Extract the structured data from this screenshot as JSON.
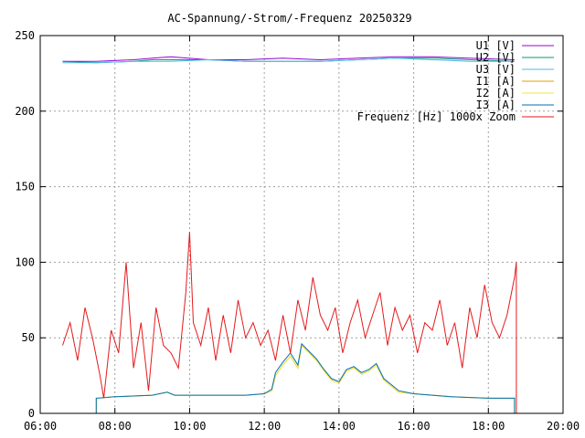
{
  "chart_data": {
    "type": "line",
    "title": "AC-Spannung/-Strom/-Frequenz 20250329",
    "xlabel": "",
    "ylabel": "",
    "x_ticks": [
      "06:00",
      "08:00",
      "10:00",
      "12:00",
      "14:00",
      "16:00",
      "18:00",
      "20:00"
    ],
    "xlim_hours": [
      6,
      20
    ],
    "ylim": [
      0,
      250
    ],
    "y_ticks": [
      "0",
      "50",
      "100",
      "150",
      "200",
      "250"
    ],
    "grid": true,
    "legend_position": "top-right",
    "series": [
      {
        "name": "U1 [V]",
        "color": "#9400d3",
        "x": [
          6.6,
          7.5,
          8.5,
          9.0,
          9.5,
          10.5,
          11.5,
          12.5,
          13.5,
          14.5,
          15.5,
          16.5,
          17.5,
          18.7
        ],
        "values": [
          233,
          233,
          234,
          235,
          236,
          234,
          234,
          235,
          234,
          235,
          236,
          236,
          235,
          234
        ]
      },
      {
        "name": "U2 [V]",
        "color": "#009e73",
        "x": [
          6.6,
          7.5,
          8.5,
          9.0,
          9.5,
          10.5,
          11.5,
          12.5,
          13.5,
          14.5,
          15.5,
          16.5,
          17.5,
          18.7
        ],
        "values": [
          233,
          232,
          233,
          234,
          234,
          234,
          233,
          233,
          233,
          234,
          235,
          235,
          234,
          233
        ]
      },
      {
        "name": "U3 [V]",
        "color": "#56b4e9",
        "x": [
          6.6,
          7.5,
          8.5,
          9.0,
          9.5,
          10.5,
          11.5,
          12.5,
          13.5,
          14.5,
          15.5,
          16.5,
          17.5,
          18.7
        ],
        "values": [
          232,
          232,
          233,
          233,
          233,
          234,
          233,
          233,
          233,
          234,
          235,
          234,
          233,
          233
        ]
      },
      {
        "name": "I1 [A]",
        "color": "#e69f00",
        "x": [
          7.5,
          7.5,
          8.0,
          9.0,
          9.4,
          9.6,
          10.0,
          11.0,
          11.5,
          12.0,
          12.2,
          12.3,
          12.5,
          12.7,
          12.9,
          13.0,
          13.2,
          13.4,
          13.6,
          13.8,
          14.0,
          14.2,
          14.4,
          14.6,
          14.8,
          15.0,
          15.2,
          15.4,
          15.6,
          16.0,
          16.5,
          17.0,
          18.0,
          18.7,
          18.7
        ],
        "values": [
          0,
          10,
          11,
          12,
          14,
          12,
          12,
          12,
          12,
          13,
          15,
          25,
          32,
          38,
          30,
          45,
          40,
          35,
          28,
          22,
          20,
          28,
          30,
          26,
          28,
          32,
          22,
          18,
          14,
          13,
          12,
          11,
          10,
          10,
          0
        ]
      },
      {
        "name": "I2 [A]",
        "color": "#f0e442",
        "x": [
          7.5,
          7.5,
          8.0,
          9.0,
          9.4,
          9.6,
          10.0,
          11.0,
          11.5,
          12.0,
          12.2,
          12.3,
          12.5,
          12.7,
          12.9,
          13.0,
          13.2,
          13.4,
          13.6,
          13.8,
          14.0,
          14.2,
          14.4,
          14.6,
          14.8,
          15.0,
          15.2,
          15.4,
          15.6,
          16.0,
          16.5,
          17.0,
          18.0,
          18.7,
          18.7
        ],
        "values": [
          0,
          10,
          11,
          12,
          14,
          12,
          12,
          12,
          12,
          13,
          15,
          25,
          32,
          38,
          30,
          45,
          40,
          35,
          28,
          22,
          20,
          28,
          30,
          26,
          28,
          32,
          22,
          18,
          14,
          13,
          12,
          11,
          10,
          10,
          0
        ]
      },
      {
        "name": "I3 [A]",
        "color": "#0072b2",
        "x": [
          7.5,
          7.5,
          8.0,
          9.0,
          9.4,
          9.6,
          10.0,
          11.0,
          11.5,
          12.0,
          12.2,
          12.3,
          12.5,
          12.7,
          12.9,
          13.0,
          13.2,
          13.4,
          13.6,
          13.8,
          14.0,
          14.2,
          14.4,
          14.6,
          14.8,
          15.0,
          15.2,
          15.4,
          15.6,
          16.0,
          16.5,
          17.0,
          18.0,
          18.7,
          18.7
        ],
        "values": [
          0,
          10,
          11,
          12,
          14,
          12,
          12,
          12,
          12,
          13,
          16,
          27,
          34,
          40,
          32,
          46,
          41,
          36,
          29,
          23,
          21,
          29,
          31,
          27,
          29,
          33,
          23,
          19,
          15,
          13,
          12,
          11,
          10,
          10,
          0
        ]
      },
      {
        "name": "Frequenz [Hz] 1000x Zoom",
        "color": "#e41a1c",
        "x": [
          6.6,
          6.8,
          7.0,
          7.2,
          7.4,
          7.6,
          7.7,
          7.9,
          8.1,
          8.3,
          8.5,
          8.7,
          8.9,
          9.1,
          9.3,
          9.5,
          9.7,
          9.9,
          10.0,
          10.1,
          10.3,
          10.5,
          10.7,
          10.9,
          11.1,
          11.3,
          11.5,
          11.7,
          11.9,
          12.1,
          12.3,
          12.5,
          12.7,
          12.9,
          13.1,
          13.3,
          13.5,
          13.7,
          13.9,
          14.1,
          14.3,
          14.5,
          14.7,
          14.9,
          15.1,
          15.3,
          15.5,
          15.7,
          15.9,
          16.1,
          16.3,
          16.5,
          16.7,
          16.9,
          17.1,
          17.3,
          17.5,
          17.7,
          17.9,
          18.1,
          18.3,
          18.5,
          18.7,
          18.75,
          18.75
        ],
        "values": [
          45,
          60,
          35,
          70,
          50,
          25,
          10,
          55,
          40,
          100,
          30,
          60,
          15,
          70,
          45,
          40,
          30,
          80,
          120,
          60,
          45,
          70,
          35,
          65,
          40,
          75,
          50,
          60,
          45,
          55,
          35,
          65,
          40,
          75,
          55,
          90,
          65,
          55,
          70,
          40,
          60,
          75,
          50,
          65,
          80,
          45,
          70,
          55,
          65,
          40,
          60,
          55,
          75,
          45,
          60,
          30,
          70,
          50,
          85,
          60,
          50,
          65,
          90,
          100,
          0
        ]
      }
    ]
  }
}
